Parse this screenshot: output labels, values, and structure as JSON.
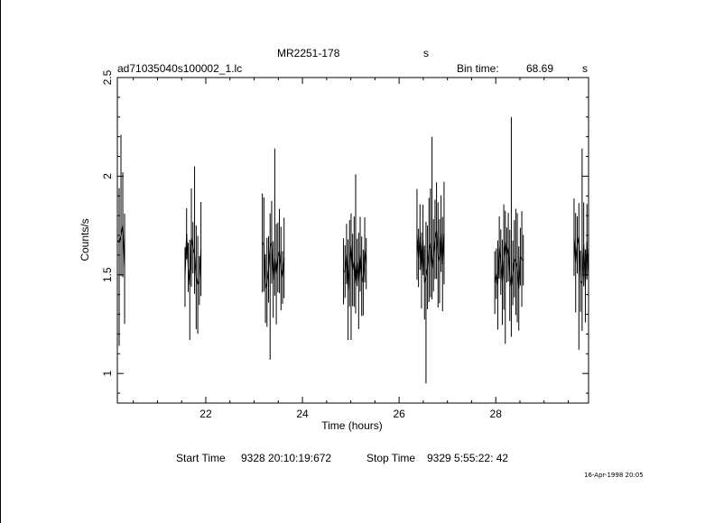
{
  "header": {
    "source": "MR2251-178",
    "source_unit": "s",
    "filename": "ad71035040s100002_1.lc",
    "bin_label": "Bin time:",
    "bin_value": "68.69",
    "bin_unit": "s"
  },
  "footer": {
    "start_label": "Start Time",
    "start_value": "9328 20:10:19:672",
    "stop_label": "Stop Time",
    "stop_value": "9329  5:55:22: 42",
    "timestamp": "16-Apr-1998 20:05"
  },
  "chart_data": {
    "type": "line",
    "xlabel": "Time (hours)",
    "ylabel": "Counts/s",
    "xlim": [
      20.17,
      29.92
    ],
    "ylim": [
      0.85,
      2.5
    ],
    "x_ticks": [
      22,
      24,
      26,
      28
    ],
    "y_ticks": [
      1,
      1.5,
      2,
      2.5
    ],
    "style": "error-bars",
    "segments": [
      {
        "x_start": 20.17,
        "x_end": 20.32,
        "y_center": 1.65,
        "y_min": 1.14,
        "y_max": 2.21
      },
      {
        "x_start": 21.57,
        "x_end": 21.9,
        "y_center": 1.57,
        "y_min": 1.17,
        "y_max": 2.05
      },
      {
        "x_start": 23.17,
        "x_end": 23.62,
        "y_center": 1.56,
        "y_min": 1.07,
        "y_max": 2.14
      },
      {
        "x_start": 24.85,
        "x_end": 25.32,
        "y_center": 1.53,
        "y_min": 1.17,
        "y_max": 2.01
      },
      {
        "x_start": 26.37,
        "x_end": 26.93,
        "y_center": 1.6,
        "y_min": 0.95,
        "y_max": 2.2
      },
      {
        "x_start": 27.98,
        "x_end": 28.57,
        "y_center": 1.55,
        "y_min": 1.15,
        "y_max": 2.3
      },
      {
        "x_start": 29.62,
        "x_end": 29.92,
        "y_center": 1.58,
        "y_min": 1.12,
        "y_max": 2.14
      }
    ]
  }
}
